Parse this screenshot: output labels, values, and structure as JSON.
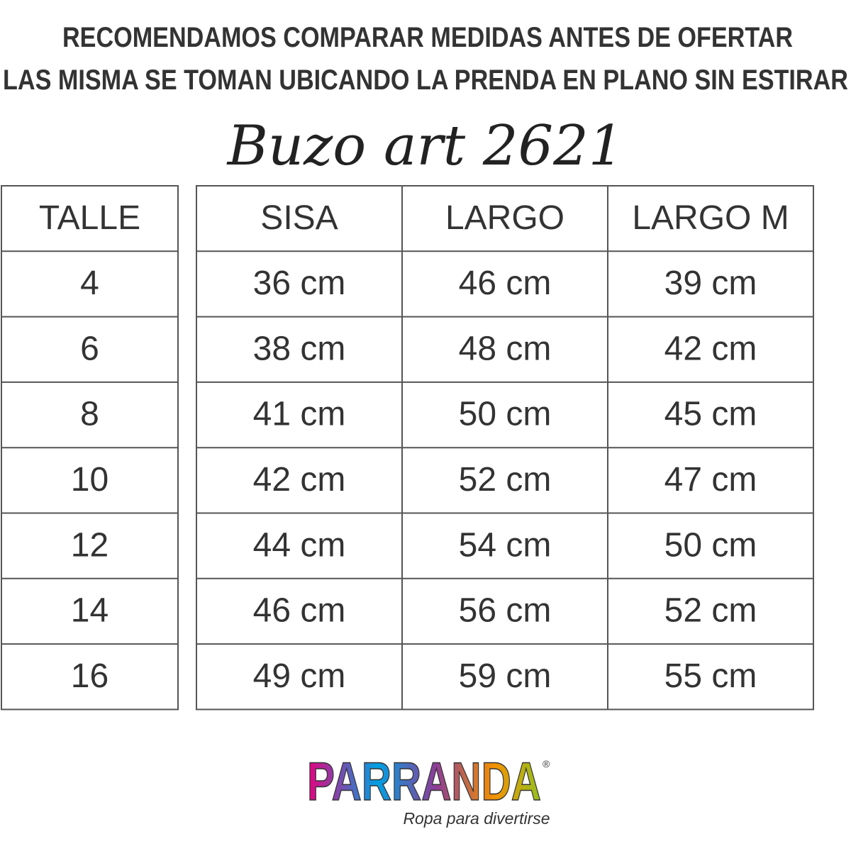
{
  "header": {
    "line1": "RECOMENDAMOS COMPARAR MEDIDAS ANTES DE OFERTAR",
    "line2": "LAS MISMA SE TOMAN UBICANDO LA PRENDA EN PLANO SIN ESTIRAR"
  },
  "title": "Buzo art 2621",
  "size_table": {
    "header": "TALLE",
    "rows": [
      "4",
      "6",
      "8",
      "10",
      "12",
      "14",
      "16"
    ]
  },
  "measure_table": {
    "headers": [
      "SISA",
      "LARGO",
      "LARGO M"
    ],
    "rows": [
      [
        "36 cm",
        "46 cm",
        "39 cm"
      ],
      [
        "38 cm",
        "48 cm",
        "42 cm"
      ],
      [
        "41 cm",
        "50 cm",
        "45 cm"
      ],
      [
        "42 cm",
        "52 cm",
        "47 cm"
      ],
      [
        "44 cm",
        "54 cm",
        "50 cm"
      ],
      [
        "46 cm",
        "56 cm",
        "52 cm"
      ],
      [
        "49 cm",
        "59 cm",
        "55 cm"
      ]
    ]
  },
  "logo": {
    "brand": "PARRANDA",
    "mark": "®",
    "tagline": "Ropa para divertirse"
  }
}
